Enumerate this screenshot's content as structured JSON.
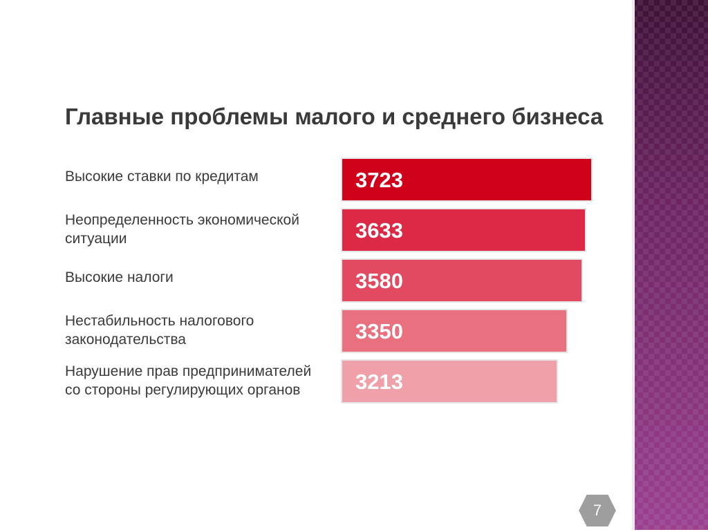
{
  "chart_data": {
    "type": "bar",
    "orientation": "horizontal",
    "title": "Главные проблемы малого и среднего бизнеса",
    "categories": [
      [
        "Высокие ставки по кредитам"
      ],
      [
        "Неопределенность экономической",
        "ситуации"
      ],
      [
        "Высокие налоги"
      ],
      [
        "Нестабильность налогового",
        "законодательства"
      ],
      [
        "Нарушение прав предпринимателей",
        "со стороны регулирующих органов"
      ]
    ],
    "values": [
      3723,
      3633,
      3580,
      3350,
      3213
    ],
    "bar_colors": [
      "#d0021b",
      "#dc2a46",
      "#e24a62",
      "#e8707f",
      "#efa0a8"
    ],
    "value_labels": "inside-left",
    "legend": "none",
    "grid": false
  },
  "slide": {
    "page_number": "7",
    "page_badge_color": "#9e9e9e",
    "accent_color": "#7a2e72"
  }
}
